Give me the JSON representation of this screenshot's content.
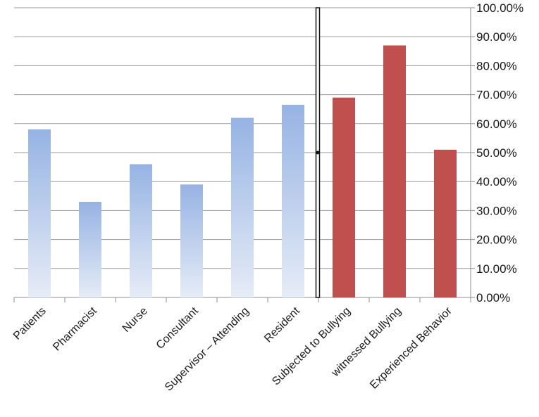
{
  "chart_data": {
    "type": "bar",
    "categories": [
      "Patients",
      "Pharmacist",
      "Nurse",
      "Consultant",
      "Supervisor – Attending",
      "Resident",
      "Subjected to Bullying",
      "witnessed Bullying",
      "Experienced Behavior"
    ],
    "values": [
      0.58,
      0.33,
      0.46,
      0.39,
      0.62,
      0.665,
      0.69,
      0.87,
      0.51
    ],
    "groups": [
      "blue",
      "blue",
      "blue",
      "blue",
      "blue",
      "blue",
      "red",
      "red",
      "red"
    ],
    "y_axis": {
      "position": "right",
      "ylim": [
        0,
        1
      ],
      "ticks": [
        0,
        0.1,
        0.2,
        0.3,
        0.4,
        0.5,
        0.6,
        0.7,
        0.8,
        0.9,
        1.0
      ],
      "tick_labels": [
        "0.00%",
        "10.00%",
        "20.00%",
        "30.00%",
        "40.00%",
        "50.00%",
        "60.00%",
        "70.00%",
        "80.00%",
        "90.00%",
        "100.00%"
      ]
    },
    "grid": true,
    "legend": "none",
    "title": "",
    "xlabel": "",
    "ylabel": ""
  },
  "colors": {
    "blue_top": "#96b3e3",
    "blue_bottom": "#e6ecf7",
    "red": "#c0504d",
    "grid": "#9a9a9a",
    "axis": "#8c8c8c"
  }
}
